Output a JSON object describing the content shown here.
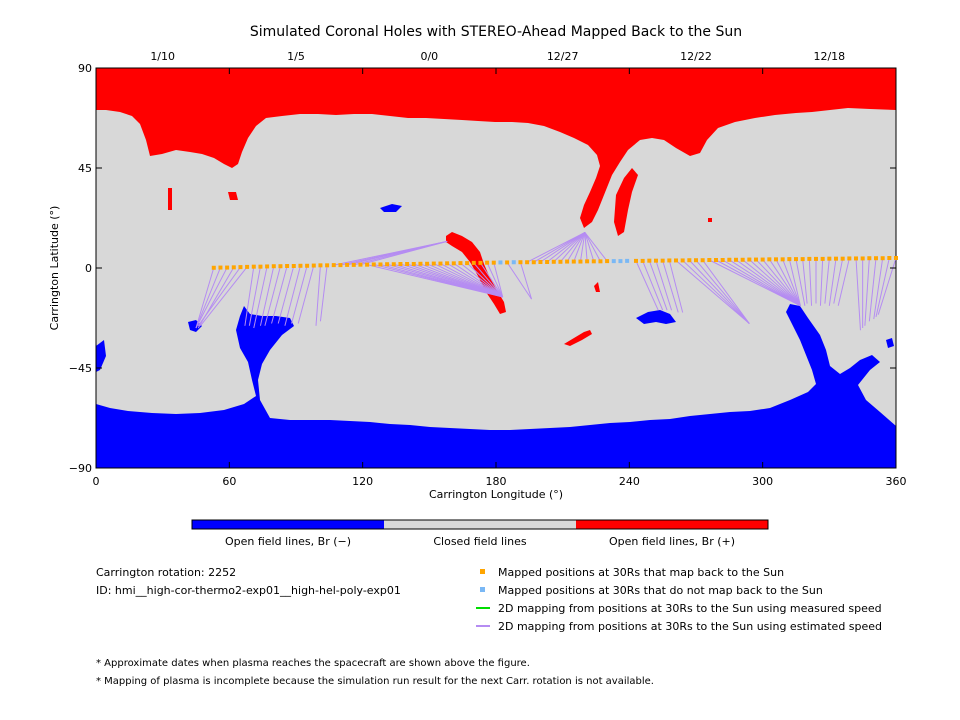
{
  "chart_data": {
    "type": "scatter",
    "title": "Simulated Coronal Holes with STEREO-Ahead Mapped Back to the Sun",
    "xlabel": "Carrington Longitude (°)",
    "ylabel": "Carrington Latitude (°)",
    "xlim": [
      0,
      360
    ],
    "ylim": [
      -90,
      90
    ],
    "x_ticks": [
      0,
      60,
      120,
      180,
      240,
      300,
      360
    ],
    "y_ticks": [
      90,
      45,
      0,
      -45,
      -90
    ],
    "x_tick_labels": [
      "0",
      "60",
      "120",
      "180",
      "240",
      "300",
      "360"
    ],
    "y_tick_labels": [
      "90",
      "45",
      "0",
      "−45",
      "−90"
    ],
    "top_axis": {
      "ticks": [
        30,
        90,
        150,
        210,
        270,
        330
      ],
      "labels": [
        "1/10",
        "1/5",
        "0/0",
        "12/27",
        "12/22",
        "12/18"
      ]
    },
    "colors": {
      "open_negative": "#0000ff",
      "closed": "#d8d8d8",
      "open_positive": "#ff0000",
      "mapped_back": "#ffa500",
      "not_mapped": "#7ab8f5",
      "measured_speed": "#00dd00",
      "estimated_speed": "#b58cf2"
    },
    "series": [
      {
        "name": "Mapped positions at 30Rs that map back to the Sun",
        "marker": "square",
        "points": [
          [
            53,
            0.1
          ],
          [
            56,
            0.2
          ],
          [
            59,
            0.2
          ],
          [
            62,
            0.3
          ],
          [
            65,
            0.4
          ],
          [
            68,
            0.5
          ],
          [
            71,
            0.6
          ],
          [
            74,
            0.6
          ],
          [
            77,
            0.7
          ],
          [
            80,
            0.8
          ],
          [
            83,
            0.8
          ],
          [
            86,
            0.9
          ],
          [
            89,
            0.9
          ],
          [
            92,
            1.0
          ],
          [
            95,
            1.0
          ],
          [
            98,
            1.1
          ],
          [
            101,
            1.2
          ],
          [
            104,
            1.2
          ],
          [
            107,
            1.3
          ],
          [
            110,
            1.3
          ],
          [
            113,
            1.4
          ],
          [
            116,
            1.4
          ],
          [
            119,
            1.5
          ],
          [
            122,
            1.5
          ],
          [
            125,
            1.6
          ],
          [
            128,
            1.6
          ],
          [
            131,
            1.7
          ],
          [
            134,
            1.7
          ],
          [
            137,
            1.8
          ],
          [
            140,
            1.8
          ],
          [
            143,
            1.8
          ],
          [
            146,
            1.9
          ],
          [
            149,
            1.9
          ],
          [
            152,
            2.0
          ],
          [
            155,
            2.0
          ],
          [
            158,
            2.1
          ],
          [
            161,
            2.1
          ],
          [
            164,
            2.2
          ],
          [
            167,
            2.2
          ],
          [
            170,
            2.3
          ],
          [
            173,
            2.3
          ],
          [
            176,
            2.4
          ],
          [
            179,
            2.4
          ],
          [
            185,
            2.5
          ],
          [
            191,
            2.6
          ],
          [
            194,
            2.6
          ],
          [
            197,
            2.6
          ],
          [
            200,
            2.7
          ],
          [
            203,
            2.7
          ],
          [
            206,
            2.8
          ],
          [
            209,
            2.8
          ],
          [
            212,
            2.9
          ],
          [
            215,
            2.9
          ],
          [
            218,
            2.9
          ],
          [
            221,
            3.0
          ],
          [
            224,
            3.0
          ],
          [
            227,
            3.0
          ],
          [
            230,
            3.1
          ],
          [
            243,
            3.2
          ],
          [
            246,
            3.2
          ],
          [
            249,
            3.3
          ],
          [
            252,
            3.3
          ],
          [
            255,
            3.3
          ],
          [
            258,
            3.4
          ],
          [
            261,
            3.4
          ],
          [
            264,
            3.4
          ],
          [
            267,
            3.5
          ],
          [
            270,
            3.5
          ],
          [
            273,
            3.5
          ],
          [
            276,
            3.6
          ],
          [
            279,
            3.6
          ],
          [
            282,
            3.6
          ],
          [
            285,
            3.7
          ],
          [
            288,
            3.7
          ],
          [
            291,
            3.7
          ],
          [
            294,
            3.8
          ],
          [
            297,
            3.8
          ],
          [
            300,
            3.8
          ],
          [
            303,
            3.9
          ],
          [
            306,
            3.9
          ],
          [
            309,
            3.9
          ],
          [
            312,
            4.0
          ],
          [
            315,
            4.0
          ],
          [
            318,
            4.0
          ],
          [
            321,
            4.1
          ],
          [
            324,
            4.1
          ],
          [
            327,
            4.1
          ],
          [
            330,
            4.2
          ],
          [
            333,
            4.2
          ],
          [
            336,
            4.2
          ],
          [
            339,
            4.3
          ],
          [
            342,
            4.3
          ],
          [
            345,
            4.3
          ],
          [
            348,
            4.4
          ],
          [
            351,
            4.4
          ],
          [
            354,
            4.4
          ],
          [
            357,
            4.5
          ],
          [
            360,
            4.5
          ]
        ]
      },
      {
        "name": "Mapped positions at 30Rs that do not map back to the Sun",
        "marker": "square",
        "points": [
          [
            182,
            2.5
          ],
          [
            188,
            2.6
          ],
          [
            233,
            3.1
          ],
          [
            236,
            3.1
          ],
          [
            239,
            3.2
          ]
        ]
      },
      {
        "name": "2D mapping from positions at 30Rs to the Sun using measured speed",
        "marker": "line",
        "segments": []
      },
      {
        "name": "2D mapping from positions at 30Rs to the Sun using estimated speed",
        "marker": "line",
        "segments": [
          [
            53,
            0.1,
            45,
            -27
          ],
          [
            56,
            0.2,
            45,
            -27
          ],
          [
            59,
            0.2,
            45,
            -27
          ],
          [
            62,
            0.3,
            46,
            -27
          ],
          [
            65,
            0.4,
            46,
            -26
          ],
          [
            68,
            0.5,
            47,
            -26
          ],
          [
            71,
            0.6,
            67,
            -26
          ],
          [
            74,
            0.6,
            69,
            -26
          ],
          [
            77,
            0.7,
            71,
            -27
          ],
          [
            80,
            0.8,
            74,
            -26
          ],
          [
            83,
            0.8,
            76,
            -26
          ],
          [
            86,
            0.9,
            79,
            -25
          ],
          [
            89,
            0.9,
            82,
            -25
          ],
          [
            92,
            1.0,
            85,
            -26
          ],
          [
            95,
            1.0,
            88,
            -25
          ],
          [
            98,
            1.1,
            91,
            -25
          ],
          [
            101,
            1.2,
            99,
            -26
          ],
          [
            104,
            1.2,
            101,
            -24
          ],
          [
            107,
            1.3,
            158,
            12
          ],
          [
            110,
            1.3,
            158,
            12
          ],
          [
            113,
            1.4,
            158,
            12
          ],
          [
            116,
            1.4,
            158,
            12
          ],
          [
            119,
            1.5,
            158,
            12
          ],
          [
            122,
            1.5,
            183,
            -13
          ],
          [
            125,
            1.6,
            183,
            -13
          ],
          [
            128,
            1.6,
            183,
            -13
          ],
          [
            131,
            1.7,
            183,
            -13
          ],
          [
            134,
            1.7,
            183,
            -13
          ],
          [
            137,
            1.8,
            183,
            -13
          ],
          [
            140,
            1.8,
            183,
            -13
          ],
          [
            143,
            1.8,
            183,
            -13
          ],
          [
            146,
            1.9,
            183,
            -13
          ],
          [
            149,
            1.9,
            183,
            -13
          ],
          [
            152,
            2.0,
            183,
            -13
          ],
          [
            155,
            2.0,
            183,
            -13
          ],
          [
            158,
            2.1,
            183,
            -13
          ],
          [
            161,
            2.1,
            183,
            -13
          ],
          [
            164,
            2.2,
            183,
            -13
          ],
          [
            167,
            2.2,
            183,
            -13
          ],
          [
            170,
            2.3,
            183,
            -13
          ],
          [
            173,
            2.3,
            183,
            -13
          ],
          [
            176,
            2.4,
            183,
            -13
          ],
          [
            179,
            2.4,
            183,
            -13
          ],
          [
            185,
            2.5,
            196,
            -14
          ],
          [
            191,
            2.6,
            196,
            -14
          ],
          [
            194,
            2.6,
            220,
            16
          ],
          [
            197,
            2.6,
            220,
            16
          ],
          [
            200,
            2.7,
            220,
            16
          ],
          [
            203,
            2.7,
            220,
            16
          ],
          [
            206,
            2.8,
            220,
            16
          ],
          [
            209,
            2.8,
            220,
            16
          ],
          [
            212,
            2.9,
            220,
            16
          ],
          [
            215,
            2.9,
            220,
            16
          ],
          [
            218,
            2.9,
            220,
            16
          ],
          [
            221,
            3.0,
            220,
            16
          ],
          [
            224,
            3.0,
            220,
            16
          ],
          [
            227,
            3.0,
            220,
            16
          ],
          [
            230,
            3.1,
            220,
            16
          ],
          [
            243,
            3.2,
            253,
            -19
          ],
          [
            246,
            3.2,
            255,
            -19
          ],
          [
            249,
            3.3,
            257,
            -19
          ],
          [
            252,
            3.3,
            259,
            -19
          ],
          [
            255,
            3.3,
            262,
            -20
          ],
          [
            258,
            3.4,
            264,
            -20
          ],
          [
            261,
            3.4,
            294,
            -25
          ],
          [
            264,
            3.4,
            294,
            -25
          ],
          [
            267,
            3.5,
            294,
            -25
          ],
          [
            270,
            3.5,
            294,
            -25
          ],
          [
            273,
            3.5,
            294,
            -25
          ],
          [
            276,
            3.6,
            317,
            -17
          ],
          [
            279,
            3.6,
            317,
            -17
          ],
          [
            282,
            3.6,
            317,
            -17
          ],
          [
            285,
            3.7,
            317,
            -17
          ],
          [
            288,
            3.7,
            317,
            -17
          ],
          [
            291,
            3.7,
            317,
            -17
          ],
          [
            294,
            3.8,
            317,
            -17
          ],
          [
            297,
            3.8,
            317,
            -17
          ],
          [
            300,
            3.8,
            317,
            -17
          ],
          [
            303,
            3.9,
            317,
            -17
          ],
          [
            306,
            3.9,
            317,
            -17
          ],
          [
            309,
            3.9,
            317,
            -17
          ],
          [
            312,
            4.0,
            317,
            -17
          ],
          [
            315,
            4.0,
            319,
            -17
          ],
          [
            318,
            4.0,
            320,
            -16
          ],
          [
            321,
            4.1,
            322,
            -17
          ],
          [
            324,
            4.1,
            324,
            -16
          ],
          [
            327,
            4.1,
            326,
            -17
          ],
          [
            330,
            4.2,
            328,
            -16
          ],
          [
            333,
            4.2,
            330,
            -17
          ],
          [
            336,
            4.2,
            332,
            -16
          ],
          [
            339,
            4.3,
            334,
            -17
          ],
          [
            342,
            4.3,
            344,
            -28
          ],
          [
            345,
            4.3,
            345,
            -27
          ],
          [
            348,
            4.4,
            346,
            -26
          ],
          [
            351,
            4.4,
            348,
            -24
          ],
          [
            354,
            4.4,
            350,
            -23
          ],
          [
            357,
            4.5,
            351,
            -22
          ],
          [
            360,
            4.5,
            352,
            -21
          ]
        ]
      }
    ],
    "colorbar": {
      "labels": [
        "Open field lines, Br (−)",
        "Closed field lines",
        "Open field lines, Br (+)"
      ]
    }
  },
  "info": {
    "rotation": "Carrington rotation: 2252",
    "id": "ID: hmi__high-cor-thermo2-exp01__high-hel-poly-exp01"
  },
  "legend": [
    "Mapped positions at 30Rs that map back to the Sun",
    "Mapped positions at 30Rs that do not map back to the Sun",
    "2D mapping from positions at 30Rs to the Sun using measured speed",
    "2D mapping from positions at 30Rs to the Sun using estimated speed"
  ],
  "notes": [
    "* Approximate dates when plasma reaches the spacecraft are shown above the figure.",
    "* Mapping of plasma is incomplete because the simulation run result for the next Carr. rotation is not available."
  ]
}
